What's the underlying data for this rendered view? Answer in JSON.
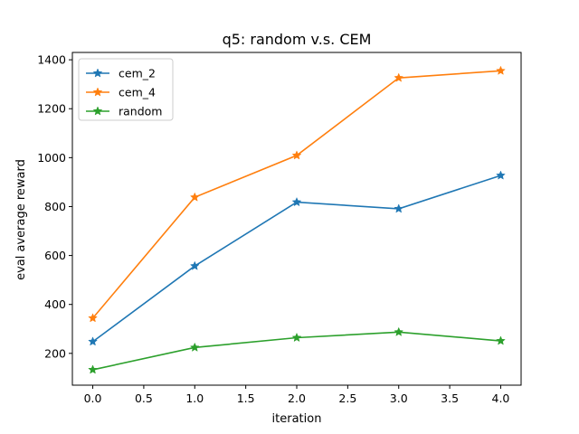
{
  "chart_data": {
    "type": "line",
    "title": "q5: random v.s. CEM",
    "xlabel": "iteration",
    "ylabel": "eval average reward",
    "x": [
      0.0,
      1.0,
      2.0,
      3.0,
      4.0
    ],
    "xlim": [
      -0.2,
      4.2
    ],
    "ylim": [
      70,
      1430
    ],
    "xticks": [
      0.0,
      0.5,
      1.0,
      1.5,
      2.0,
      2.5,
      3.0,
      3.5,
      4.0
    ],
    "xtick_labels": [
      "0.0",
      "0.5",
      "1.0",
      "1.5",
      "2.0",
      "2.5",
      "3.0",
      "3.5",
      "4.0"
    ],
    "yticks": [
      200,
      400,
      600,
      800,
      1000,
      1200,
      1400
    ],
    "ytick_labels": [
      "200",
      "400",
      "600",
      "800",
      "1000",
      "1200",
      "1400"
    ],
    "grid": false,
    "legend_position": "top-left",
    "marker": "star",
    "series": [
      {
        "name": "cem_2",
        "color": "#1f77b4",
        "values": [
          248,
          557,
          818,
          791,
          927
        ]
      },
      {
        "name": "cem_4",
        "color": "#ff7f0e",
        "values": [
          344,
          838,
          1009,
          1326,
          1355
        ]
      },
      {
        "name": "random",
        "color": "#2ca02c",
        "values": [
          133,
          224,
          264,
          287,
          251
        ]
      }
    ]
  }
}
